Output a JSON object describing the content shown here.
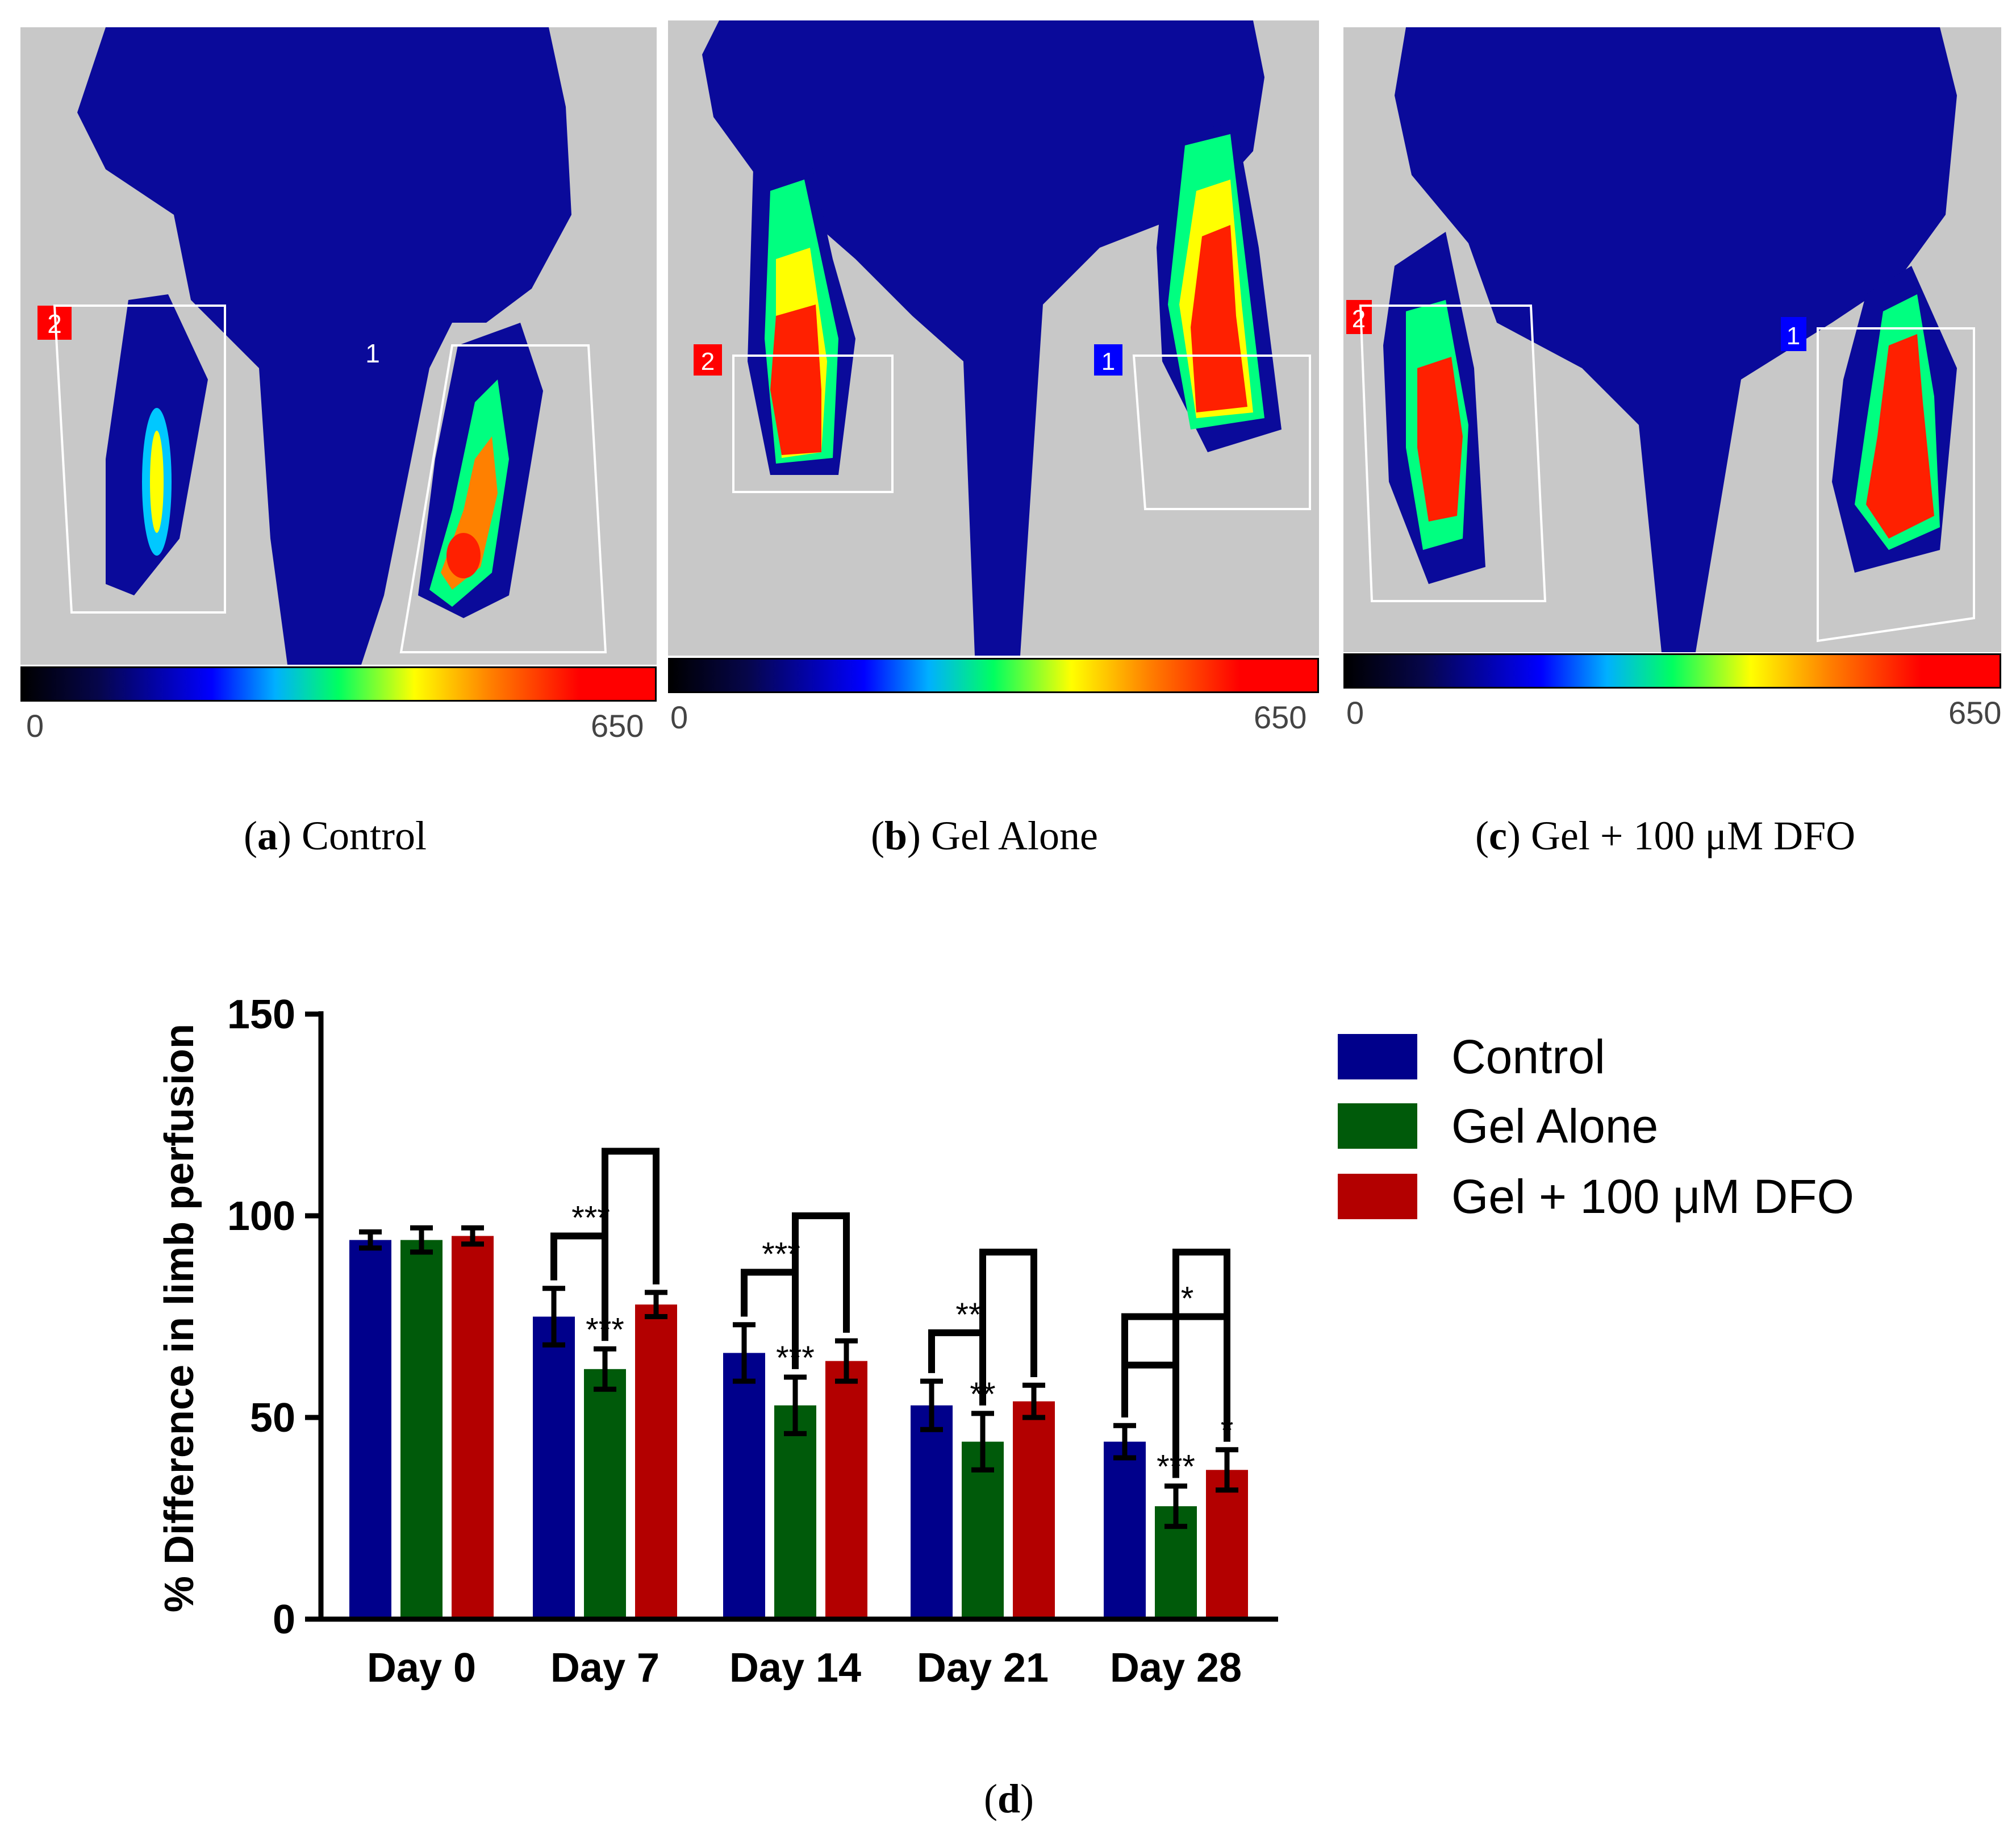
{
  "panels": [
    {
      "id": "a",
      "caption_letter": "a",
      "caption_text": "Control",
      "scale_min": "0",
      "scale_max": "650",
      "roi_labels": [
        "2",
        "1"
      ]
    },
    {
      "id": "b",
      "caption_letter": "b",
      "caption_text": "Gel Alone",
      "scale_min": "0",
      "scale_max": "650",
      "roi_labels": [
        "2",
        "1"
      ]
    },
    {
      "id": "c",
      "caption_letter": "c",
      "caption_text": "Gel + 100 μM DFO",
      "scale_min": "0",
      "scale_max": "650",
      "roi_labels": [
        "2",
        "1"
      ]
    }
  ],
  "chart_caption_letter": "d",
  "chart_data": {
    "type": "bar",
    "categories": [
      "Day 0",
      "Day 7",
      "Day 14",
      "Day 21",
      "Day 28"
    ],
    "ylabel": "% Difference in limb perfusion",
    "xlabel": "",
    "ylim": [
      0,
      150
    ],
    "yticks": [
      0,
      50,
      100,
      150
    ],
    "legend_position": "right",
    "series": [
      {
        "name": "Control",
        "color": "#00008b",
        "values": [
          94,
          75,
          66,
          53,
          44
        ],
        "errors": [
          2,
          7,
          7,
          6,
          4
        ]
      },
      {
        "name": "Gel Alone",
        "color": "#005a0a",
        "values": [
          94,
          62,
          53,
          44,
          28
        ],
        "errors": [
          3,
          5,
          7,
          7,
          5
        ]
      },
      {
        "name": "Gel + 100 μM DFO",
        "color": "#b30000",
        "values": [
          95,
          78,
          64,
          54,
          37
        ],
        "errors": [
          2,
          3,
          5,
          4,
          5
        ]
      }
    ],
    "bar_annotations": [
      {
        "category": 1,
        "series": 1,
        "text": "***"
      },
      {
        "category": 2,
        "series": 1,
        "text": "***"
      },
      {
        "category": 3,
        "series": 1,
        "text": "**"
      },
      {
        "category": 4,
        "series": 1,
        "text": "***"
      },
      {
        "category": 4,
        "series": 2,
        "text": "*"
      }
    ],
    "brackets": [
      {
        "category": 1,
        "from": 0,
        "to": 1,
        "level": 95,
        "text": "***"
      },
      {
        "category": 1,
        "from": 1,
        "to": 2,
        "level": 116,
        "text": ""
      },
      {
        "category": 2,
        "from": 0,
        "to": 1,
        "level": 86,
        "text": "***"
      },
      {
        "category": 2,
        "from": 1,
        "to": 2,
        "level": 100,
        "text": ""
      },
      {
        "category": 3,
        "from": 0,
        "to": 1,
        "level": 71,
        "text": "**"
      },
      {
        "category": 3,
        "from": 1,
        "to": 2,
        "level": 91,
        "text": ""
      },
      {
        "category": 4,
        "from": 0,
        "to": 1,
        "level": 63,
        "text": ""
      },
      {
        "category": 4,
        "from": 0,
        "to": 2,
        "level": 75,
        "text": "*"
      },
      {
        "category": 4,
        "from": 1,
        "to": 2,
        "level": 91,
        "text": ""
      }
    ]
  }
}
